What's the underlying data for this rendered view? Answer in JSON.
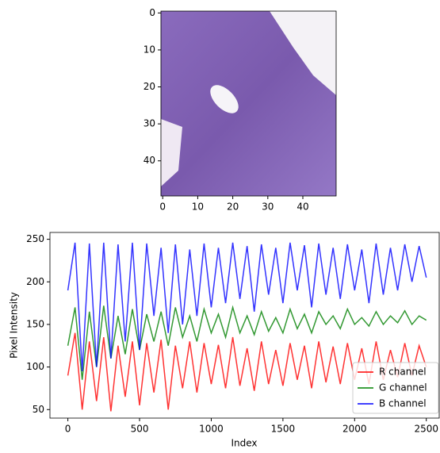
{
  "chart_data": [
    {
      "type": "image",
      "xlim": [
        -0.5,
        49.5
      ],
      "ylim": [
        49.5,
        -0.5
      ],
      "xticks": [
        0,
        10,
        20,
        30,
        40
      ],
      "yticks": [
        0,
        10,
        20,
        30,
        40
      ]
    },
    {
      "type": "line",
      "x_label": "Index",
      "y_label": "Pixel Intensity",
      "x": [
        0,
        50,
        100,
        150,
        200,
        250,
        300,
        350,
        400,
        450,
        500,
        550,
        600,
        650,
        700,
        750,
        800,
        850,
        900,
        950,
        1000,
        1050,
        1100,
        1150,
        1200,
        1250,
        1300,
        1350,
        1400,
        1450,
        1500,
        1550,
        1600,
        1650,
        1700,
        1750,
        1800,
        1850,
        1900,
        1950,
        2000,
        2050,
        2100,
        2150,
        2200,
        2250,
        2300,
        2350,
        2400,
        2450,
        2500
      ],
      "series": [
        {
          "name": "R channel",
          "color": "#ff0000",
          "values": [
            90,
            140,
            50,
            130,
            60,
            135,
            48,
            125,
            65,
            130,
            55,
            128,
            70,
            132,
            50,
            125,
            75,
            130,
            70,
            128,
            80,
            126,
            75,
            135,
            78,
            122,
            72,
            130,
            80,
            120,
            78,
            128,
            85,
            125,
            75,
            130,
            82,
            124,
            80,
            128,
            85,
            122,
            80,
            130,
            85,
            120,
            88,
            128,
            90,
            125,
            100
          ]
        },
        {
          "name": "G channel",
          "color": "#008000",
          "values": [
            125,
            170,
            85,
            165,
            100,
            172,
            110,
            160,
            115,
            168,
            120,
            162,
            130,
            165,
            125,
            170,
            135,
            160,
            130,
            168,
            140,
            162,
            135,
            170,
            140,
            160,
            138,
            165,
            142,
            158,
            140,
            168,
            145,
            162,
            140,
            165,
            150,
            160,
            145,
            168,
            150,
            158,
            148,
            165,
            150,
            160,
            152,
            166,
            150,
            160,
            155
          ]
        },
        {
          "name": "B channel",
          "color": "#0000ff",
          "values": [
            190,
            246,
            95,
            245,
            100,
            246,
            110,
            244,
            130,
            246,
            120,
            245,
            160,
            240,
            140,
            244,
            150,
            238,
            160,
            245,
            170,
            240,
            175,
            246,
            180,
            242,
            165,
            244,
            185,
            240,
            175,
            246,
            190,
            243,
            170,
            245,
            185,
            240,
            180,
            244,
            190,
            238,
            175,
            245,
            185,
            240,
            190,
            244,
            200,
            242,
            205
          ]
        }
      ],
      "xlim": [
        -125,
        2590
      ],
      "ylim": [
        40,
        258
      ],
      "xticks": [
        0,
        500,
        1000,
        1500,
        2000,
        2500
      ],
      "yticks": [
        50,
        100,
        150,
        200,
        250
      ],
      "legend": "lower right"
    }
  ]
}
